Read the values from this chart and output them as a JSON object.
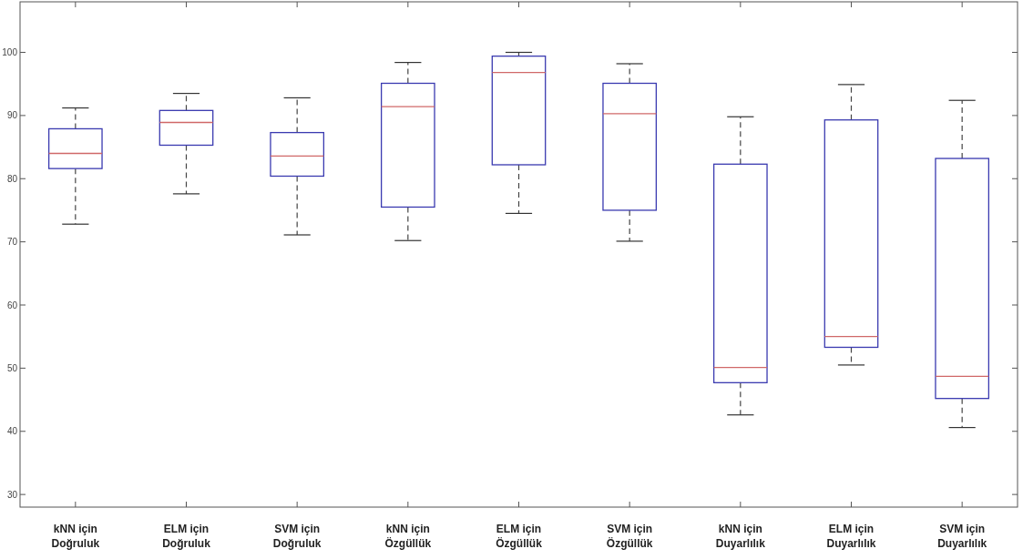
{
  "chart_data": {
    "type": "box",
    "categories": [
      "kNN için Doğruluk",
      "ELM için Doğruluk",
      "SVM için Doğruluk",
      "kNN için Özgüllük",
      "ELM için Özgüllük",
      "SVM için Özgüllük",
      "kNN için Duyarlılık",
      "ELM için Duyarlılık",
      "SVM için Duyarlılık"
    ],
    "series": [
      {
        "color": "#3a3ab0",
        "boxes": [
          {
            "low": 72.8,
            "q1": 81.6,
            "median": 84.0,
            "q3": 87.9,
            "high": 91.2
          },
          {
            "low": 77.6,
            "q1": 85.3,
            "median": 88.9,
            "q3": 90.8,
            "high": 93.5
          },
          {
            "low": 71.1,
            "q1": 80.4,
            "median": 83.6,
            "q3": 87.3,
            "high": 92.8
          },
          {
            "low": 70.2,
            "q1": 75.5,
            "median": 91.4,
            "q3": 95.1,
            "high": 98.4
          },
          {
            "low": 74.5,
            "q1": 82.2,
            "median": 96.8,
            "q3": 99.4,
            "high": 100
          },
          {
            "low": 70.1,
            "q1": 75.0,
            "median": 90.3,
            "q3": 95.1,
            "high": 98.2
          },
          {
            "low": 42.6,
            "q1": 47.7,
            "median": 50.1,
            "q3": 82.3,
            "high": 89.8
          },
          {
            "low": 50.5,
            "q1": 53.3,
            "median": 55.0,
            "q3": 89.3,
            "high": 94.9
          },
          {
            "low": 40.6,
            "q1": 45.2,
            "median": 48.7,
            "q3": 83.2,
            "high": 92.4
          }
        ]
      }
    ],
    "ylim": [
      28,
      108
    ],
    "yticks": [
      30,
      40,
      50,
      60,
      70,
      80,
      90,
      100
    ]
  }
}
